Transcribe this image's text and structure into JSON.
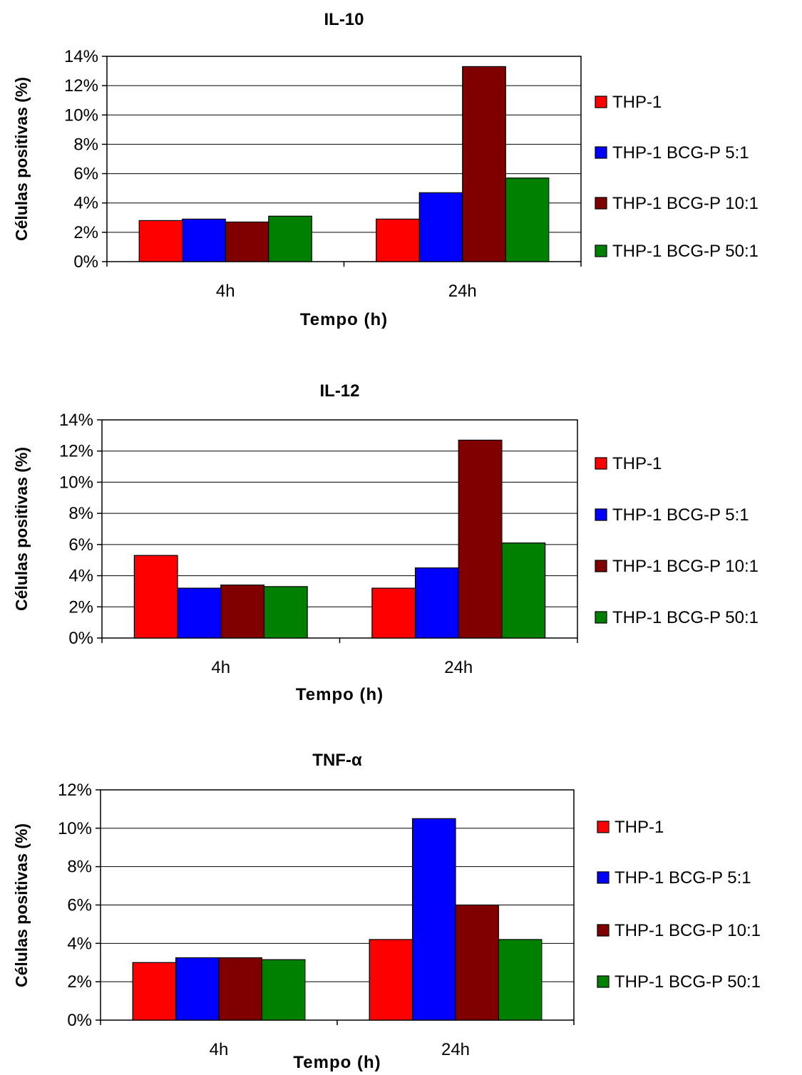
{
  "chart_data": [
    {
      "type": "bar",
      "title": "IL-10",
      "xlabel": "Tempo (h)",
      "ylabel": "Células positivas (%)",
      "categories": [
        "4h",
        "24h"
      ],
      "yticks": [
        "0%",
        "2%",
        "4%",
        "6%",
        "8%",
        "10%",
        "12%",
        "14%"
      ],
      "ylim": [
        0,
        14
      ],
      "grid": true,
      "legend_position": "right",
      "series": [
        {
          "name": "THP-1",
          "color": "#ff0000",
          "values": [
            2.8,
            2.9
          ]
        },
        {
          "name": "THP-1 BCG-P 5:1",
          "color": "#0000ff",
          "values": [
            2.9,
            4.7
          ]
        },
        {
          "name": "THP-1 BCG-P 10:1",
          "color": "#800000",
          "values": [
            2.7,
            13.3
          ]
        },
        {
          "name": "THP-1 BCG-P 50:1",
          "color": "#008000",
          "values": [
            3.1,
            5.7
          ]
        }
      ]
    },
    {
      "type": "bar",
      "title": "IL-12",
      "xlabel": "Tempo (h)",
      "ylabel": "Células positivas (%)",
      "categories": [
        "4h",
        "24h"
      ],
      "yticks": [
        "0%",
        "2%",
        "4%",
        "6%",
        "8%",
        "10%",
        "12%",
        "14%"
      ],
      "ylim": [
        0,
        14
      ],
      "grid": true,
      "legend_position": "right",
      "series": [
        {
          "name": "THP-1",
          "color": "#ff0000",
          "values": [
            5.3,
            3.2
          ]
        },
        {
          "name": "THP-1 BCG-P 5:1",
          "color": "#0000ff",
          "values": [
            3.2,
            4.5
          ]
        },
        {
          "name": "THP-1 BCG-P 10:1",
          "color": "#800000",
          "values": [
            3.4,
            12.7
          ]
        },
        {
          "name": "THP-1 BCG-P 50:1",
          "color": "#008000",
          "values": [
            3.3,
            6.1
          ]
        }
      ]
    },
    {
      "type": "bar",
      "title": "TNF-α",
      "xlabel": "Tempo (h)",
      "ylabel": "Células positivas (%)",
      "categories": [
        "4h",
        "24h"
      ],
      "yticks": [
        "0%",
        "2%",
        "4%",
        "6%",
        "8%",
        "10%",
        "12%"
      ],
      "ylim": [
        0,
        12
      ],
      "grid": true,
      "legend_position": "right",
      "series": [
        {
          "name": "THP-1",
          "color": "#ff0000",
          "values": [
            3.0,
            4.2
          ]
        },
        {
          "name": "THP-1 BCG-P 5:1",
          "color": "#0000ff",
          "values": [
            3.25,
            10.5
          ]
        },
        {
          "name": "THP-1 BCG-P 10:1",
          "color": "#800000",
          "values": [
            3.25,
            6.0
          ]
        },
        {
          "name": "THP-1 BCG-P 50:1",
          "color": "#008000",
          "values": [
            3.15,
            4.2
          ]
        }
      ]
    }
  ]
}
